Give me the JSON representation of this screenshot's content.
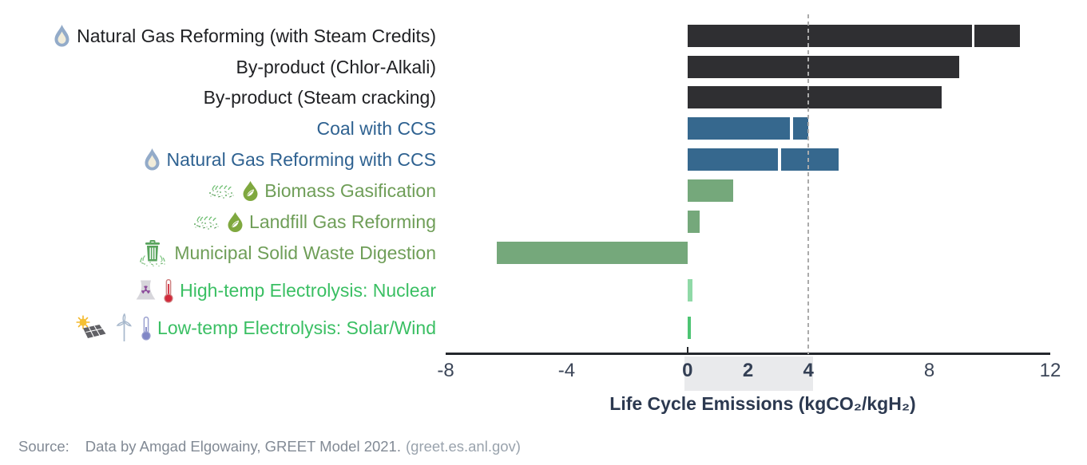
{
  "chart_data": {
    "type": "bar",
    "orientation": "horizontal",
    "xlabel": "Life Cycle Emissions (kgCO₂/kgH₂)",
    "xlim": [
      -8,
      12
    ],
    "grid": false,
    "xticks": [
      {
        "v": -8,
        "label": "-8",
        "bold": false
      },
      {
        "v": -4,
        "label": "-4",
        "bold": false
      },
      {
        "v": 0,
        "label": "0",
        "bold": true
      },
      {
        "v": 2,
        "label": "2",
        "bold": true
      },
      {
        "v": 4,
        "label": "4",
        "bold": true
      },
      {
        "v": 8,
        "label": "8",
        "bold": false
      },
      {
        "v": 12,
        "label": "12",
        "bold": false
      }
    ],
    "highlight_band": {
      "from": 0,
      "to": 4,
      "color": "#e9eaec"
    },
    "reference_line": {
      "x": 4,
      "style": "dashed",
      "color": "#ababab"
    },
    "rows": [
      {
        "label": "Natural Gas Reforming (with Steam Credits)",
        "value": 11.0,
        "segments": [
          [
            0,
            9.4
          ],
          [
            9.5,
            11.0
          ]
        ],
        "bar_color": "#2f2f32",
        "label_color": "#202124",
        "icons": [
          "flame-icon"
        ]
      },
      {
        "label": "By-product (Chlor-Alkali)",
        "value": 9.0,
        "segments": [
          [
            0,
            9.0
          ]
        ],
        "bar_color": "#2f2f32",
        "label_color": "#202124",
        "icons": []
      },
      {
        "label": "By-product (Steam cracking)",
        "value": 8.4,
        "segments": [
          [
            0,
            8.4
          ]
        ],
        "bar_color": "#2f2f32",
        "label_color": "#202124",
        "icons": []
      },
      {
        "label": "Coal with CCS",
        "value": 4.0,
        "segments": [
          [
            0,
            3.4
          ],
          [
            3.5,
            4.0
          ]
        ],
        "bar_color": "#36688e",
        "label_color": "#2f6291",
        "icons": []
      },
      {
        "label": "Natural Gas Reforming with CCS",
        "value": 5.0,
        "segments": [
          [
            0,
            3.0
          ],
          [
            3.1,
            5.0
          ]
        ],
        "bar_color": "#36688e",
        "label_color": "#2f6291",
        "icons": [
          "flame-icon"
        ]
      },
      {
        "label": "Biomass Gasification",
        "value": 1.5,
        "segments": [
          [
            0,
            1.5
          ]
        ],
        "bar_color": "#75a87b",
        "label_color": "#6f9e58",
        "icons": [
          "biomass-icon",
          "droplet-leaf-icon"
        ]
      },
      {
        "label": "Landfill Gas Reforming",
        "value": 0.4,
        "segments": [
          [
            0,
            0.4
          ]
        ],
        "bar_color": "#75a87b",
        "label_color": "#6f9e58",
        "icons": [
          "biomass-icon",
          "droplet-leaf-icon"
        ]
      },
      {
        "label": "Municipal Solid Waste Digestion",
        "value": -6.3,
        "segments": [
          [
            -6.3,
            0
          ]
        ],
        "bar_color": "#75a87b",
        "label_color": "#6f9e58",
        "icons": [
          "trash-compost-icon"
        ]
      },
      {
        "label": "High-temp Electrolysis: Nuclear",
        "value": 0.16,
        "segments": [
          [
            0,
            0.16
          ]
        ],
        "bar_color": "#90d9a7",
        "label_color": "#3abf63",
        "icons": [
          "nuclear-plant-icon",
          "thermometer-hot-icon"
        ]
      },
      {
        "label": "Low-temp Electrolysis: Solar/Wind",
        "value": 0.1,
        "segments": [
          [
            0,
            0.1
          ]
        ],
        "bar_color": "#4dc473",
        "label_color": "#3abf63",
        "icons": [
          "sun-solar-panel-icon",
          "wind-turbine-icon",
          "thermometer-cold-icon"
        ]
      }
    ]
  },
  "source": {
    "label": "Source:",
    "text": "Data by Amgad Elgowainy, GREET Model 2021.",
    "link": "(greet.es.anl.gov)"
  }
}
